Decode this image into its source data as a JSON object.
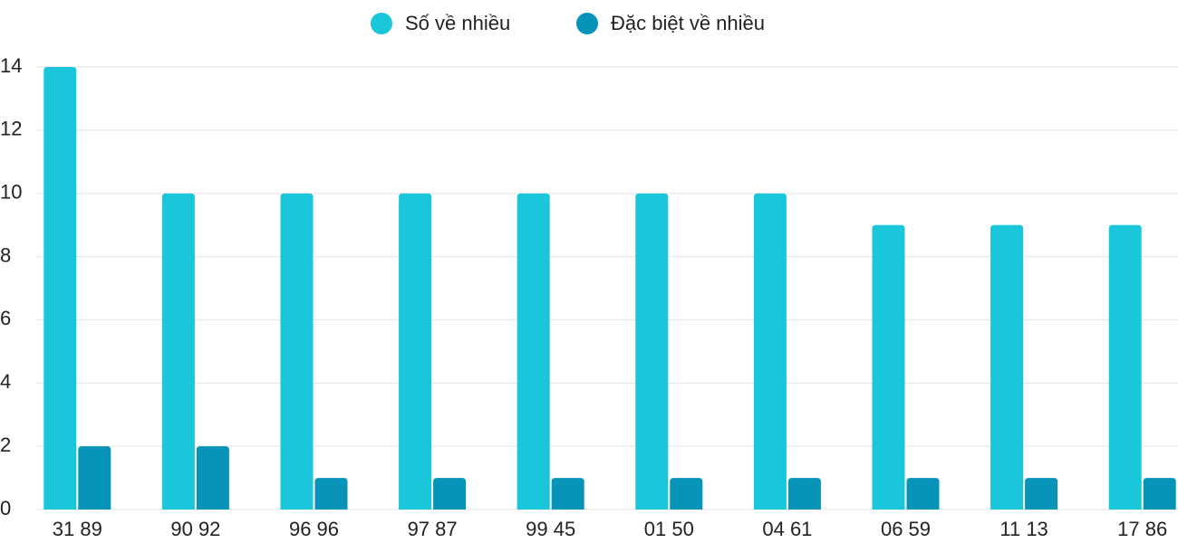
{
  "chart_data": {
    "type": "bar",
    "categories": [
      "31 89",
      "90 92",
      "96 96",
      "97 87",
      "99 45",
      "01 50",
      "04 61",
      "06 59",
      "11 13",
      "17 86"
    ],
    "series": [
      {
        "name": "Số về nhiều",
        "color": "#1ac6da",
        "values": [
          14,
          10,
          10,
          10,
          10,
          10,
          10,
          9,
          9,
          9
        ]
      },
      {
        "name": "Đặc biệt về nhiều",
        "color": "#0794b8",
        "values": [
          2,
          2,
          1,
          1,
          1,
          1,
          1,
          1,
          1,
          1
        ]
      }
    ],
    "ylim": [
      0,
      14
    ],
    "yticks": [
      0,
      2,
      4,
      6,
      8,
      10,
      12,
      14
    ],
    "grid": true,
    "legend": "top"
  }
}
